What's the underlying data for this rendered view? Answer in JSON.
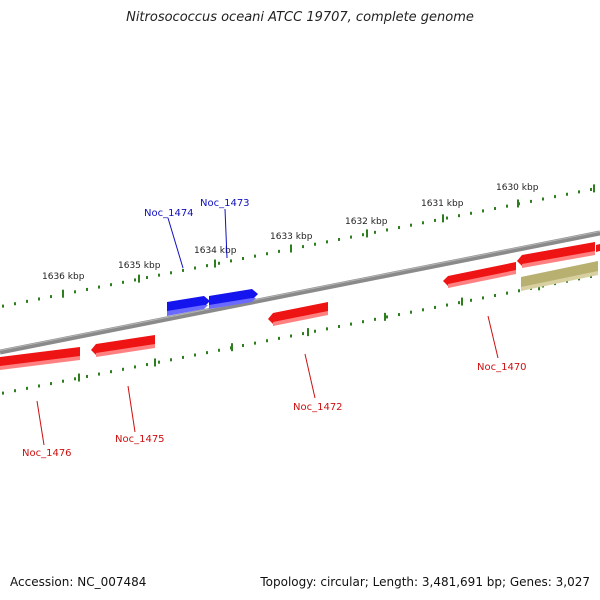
{
  "title": "Nitrosococcus oceani ATCC 19707, complete genome",
  "footer": {
    "accession": "Accession: NC_007484",
    "summary": "Topology: circular; Length: 3,481,691 bp; Genes: 3,027"
  },
  "colors": {
    "backbone": "#8a8a8a",
    "ticks": "#2e7d1e",
    "forward_gene": "#1414ee",
    "reverse_gene": "#ee1414",
    "other_gene": "#b8b070",
    "forward_label": "#1010c0",
    "reverse_label": "#cc1010"
  },
  "kbp_ticks": [
    "1636 kbp",
    "1635 kbp",
    "1634 kbp",
    "1633 kbp",
    "1632 kbp",
    "1631 kbp",
    "1630 kbp"
  ],
  "genes": [
    {
      "label": "Noc_1476",
      "strand": "reverse"
    },
    {
      "label": "Noc_1475",
      "strand": "reverse"
    },
    {
      "label": "Noc_1474",
      "strand": "forward"
    },
    {
      "label": "Noc_1473",
      "strand": "forward"
    },
    {
      "label": "Noc_1472",
      "strand": "reverse"
    },
    {
      "label": "Noc_1470",
      "strand": "reverse"
    },
    {
      "label": "",
      "strand": "reverse"
    },
    {
      "label": "",
      "strand": "other"
    }
  ]
}
